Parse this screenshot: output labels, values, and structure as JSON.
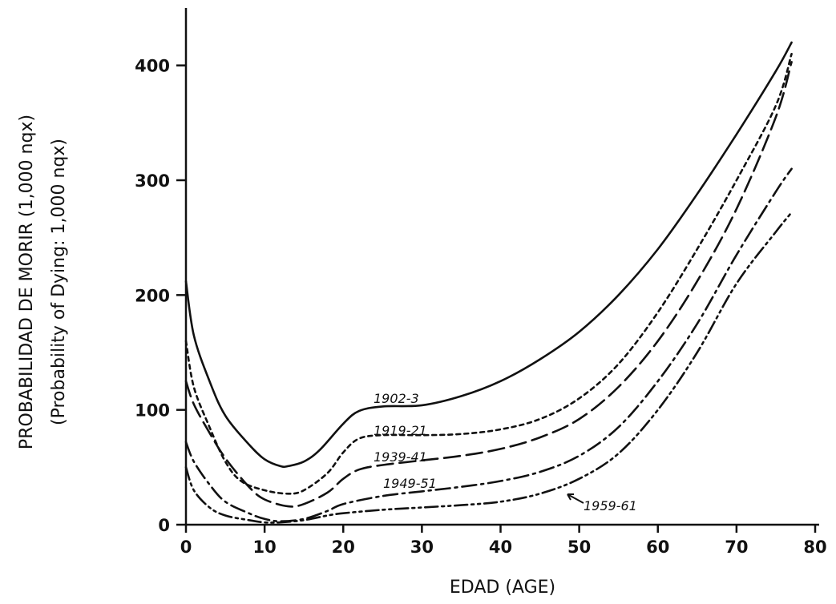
{
  "chart_data": {
    "type": "line",
    "title": "",
    "xlabel": "EDAD (AGE)",
    "ylabel": "PROBABILIDAD DE MORIR (1,000 nqx)",
    "ylabel_secondary": "(Probability of Dying: 1,000 nqx)",
    "xlim": [
      0,
      80
    ],
    "ylim": [
      0,
      450
    ],
    "x_ticks": [
      0,
      10,
      20,
      30,
      40,
      50,
      60,
      70,
      80
    ],
    "y_ticks": [
      0,
      100,
      200,
      300,
      400
    ],
    "grid": false,
    "series": [
      {
        "name": "1902-3",
        "style": "solid",
        "x": [
          0,
          1,
          3,
          5,
          8,
          10,
          12,
          13,
          15,
          17,
          20,
          22,
          25,
          30,
          35,
          40,
          45,
          50,
          55,
          60,
          65,
          70,
          75,
          77
        ],
        "y": [
          212,
          165,
          125,
          95,
          70,
          57,
          51,
          51,
          55,
          65,
          88,
          99,
          103,
          104,
          112,
          125,
          144,
          168,
          200,
          240,
          288,
          340,
          395,
          420
        ]
      },
      {
        "name": "1919-21",
        "style": "short-dash",
        "x": [
          0,
          1,
          3,
          5,
          7,
          10,
          13,
          15,
          18,
          20,
          22,
          25,
          30,
          35,
          40,
          45,
          50,
          55,
          60,
          65,
          70,
          75,
          77
        ],
        "y": [
          160,
          120,
          85,
          55,
          38,
          30,
          27,
          30,
          45,
          63,
          75,
          78,
          78,
          79,
          83,
          92,
          110,
          140,
          185,
          240,
          300,
          365,
          410
        ]
      },
      {
        "name": "1939-41",
        "style": "long-dash",
        "x": [
          0,
          1,
          3,
          5,
          8,
          10,
          13,
          15,
          18,
          20,
          22,
          25,
          30,
          35,
          40,
          45,
          50,
          55,
          60,
          65,
          70,
          75,
          77
        ],
        "y": [
          125,
          105,
          80,
          58,
          33,
          22,
          16,
          18,
          28,
          40,
          48,
          52,
          56,
          60,
          66,
          76,
          92,
          120,
          160,
          212,
          275,
          355,
          403
        ]
      },
      {
        "name": "1949-51",
        "style": "dash-dot",
        "x": [
          0,
          1,
          3,
          5,
          8,
          10,
          12,
          15,
          18,
          20,
          25,
          30,
          35,
          40,
          45,
          50,
          55,
          60,
          65,
          70,
          75,
          77
        ],
        "y": [
          72,
          55,
          35,
          20,
          10,
          5,
          3,
          5,
          12,
          18,
          25,
          29,
          33,
          38,
          46,
          60,
          85,
          125,
          175,
          235,
          290,
          310
        ]
      },
      {
        "name": "1959-61",
        "style": "dash-dot-dot",
        "x": [
          0,
          1,
          3,
          5,
          8,
          10,
          12,
          15,
          18,
          20,
          25,
          30,
          35,
          40,
          45,
          50,
          55,
          60,
          65,
          70,
          75,
          77
        ],
        "y": [
          50,
          30,
          15,
          8,
          4,
          2,
          2,
          4,
          8,
          10,
          13,
          15,
          17,
          20,
          27,
          40,
          62,
          100,
          150,
          210,
          255,
          272
        ]
      }
    ],
    "annotations": [
      "1902-3",
      "1919-21",
      "1939-41",
      "1949-51",
      "1959-61"
    ]
  }
}
